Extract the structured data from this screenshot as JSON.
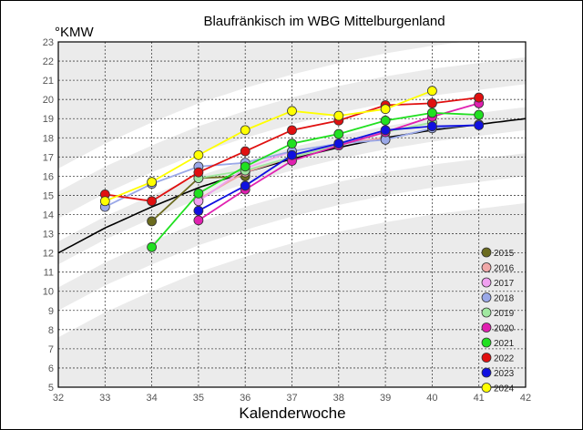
{
  "chart_data": {
    "type": "line",
    "title": "Blaufränkisch im WBG Mittelburgenland",
    "ylabel": "°KMW",
    "xlabel": "Kalenderwoche",
    "xlim": [
      32,
      42
    ],
    "ylim": [
      5,
      23
    ],
    "x_ticks": [
      32,
      33,
      34,
      35,
      36,
      37,
      38,
      39,
      40,
      41,
      42
    ],
    "y_ticks": [
      5,
      6,
      7,
      8,
      9,
      10,
      11,
      12,
      13,
      14,
      15,
      16,
      17,
      18,
      19,
      20,
      21,
      22,
      23
    ],
    "grid": true,
    "legend_position": "bottom-right",
    "reference_curve": {
      "color": "#000000",
      "x": [
        32,
        33,
        34,
        35,
        36,
        37,
        38,
        39,
        40,
        41,
        42
      ],
      "y": [
        12.0,
        13.3,
        14.4,
        15.4,
        16.2,
        16.9,
        17.5,
        18.0,
        18.4,
        18.7,
        19.0
      ]
    },
    "series": [
      {
        "name": "2015",
        "color": "#6b6b1e",
        "x": [
          34,
          35,
          36
        ],
        "y": [
          13.65,
          15.9,
          16.0
        ]
      },
      {
        "name": "2016",
        "color": "#f0a8a8",
        "x": [
          35,
          36,
          37,
          38,
          39
        ],
        "y": [
          14.8,
          16.2,
          17.0,
          17.7,
          18.0
        ]
      },
      {
        "name": "2017",
        "color": "#f0a0f0",
        "x": [
          35,
          36,
          37
        ],
        "y": [
          14.7,
          16.4,
          17.3
        ]
      },
      {
        "name": "2018",
        "color": "#9aa8e8",
        "x": [
          33,
          34,
          35,
          36,
          37,
          38,
          39,
          40,
          41
        ],
        "y": [
          14.4,
          15.6,
          16.5,
          16.7,
          17.3,
          17.7,
          17.9,
          18.5,
          18.7
        ]
      },
      {
        "name": "2019",
        "color": "#a0e8a0",
        "x": [
          35,
          36,
          37,
          38,
          39,
          40
        ],
        "y": [
          15.9,
          16.3,
          17.0,
          17.6,
          18.3,
          18.8
        ]
      },
      {
        "name": "2020",
        "color": "#e020b0",
        "x": [
          35,
          36,
          37,
          38,
          39,
          40,
          41
        ],
        "y": [
          13.7,
          15.3,
          16.8,
          17.6,
          18.3,
          19.1,
          19.8
        ]
      },
      {
        "name": "2021",
        "color": "#20e020",
        "x": [
          34,
          35,
          36,
          37,
          38,
          39,
          40,
          41
        ],
        "y": [
          12.3,
          15.1,
          16.5,
          17.7,
          18.2,
          18.9,
          19.3,
          19.2
        ]
      },
      {
        "name": "2022",
        "color": "#e01010",
        "x": [
          33,
          34,
          35,
          36,
          37,
          38,
          39,
          40,
          41
        ],
        "y": [
          15.05,
          14.7,
          16.2,
          17.3,
          18.4,
          18.9,
          19.7,
          19.8,
          20.1
        ]
      },
      {
        "name": "2023",
        "color": "#1010e0",
        "x": [
          35,
          36,
          37,
          38,
          39,
          40,
          41
        ],
        "y": [
          14.2,
          15.5,
          17.1,
          17.7,
          18.4,
          18.6,
          18.65
        ]
      },
      {
        "name": "2024",
        "color": "#ffff00",
        "x": [
          33,
          34,
          35,
          36,
          37,
          38,
          39,
          40
        ],
        "y": [
          14.7,
          15.7,
          17.1,
          18.4,
          19.4,
          19.15,
          19.5,
          20.45
        ]
      }
    ]
  }
}
